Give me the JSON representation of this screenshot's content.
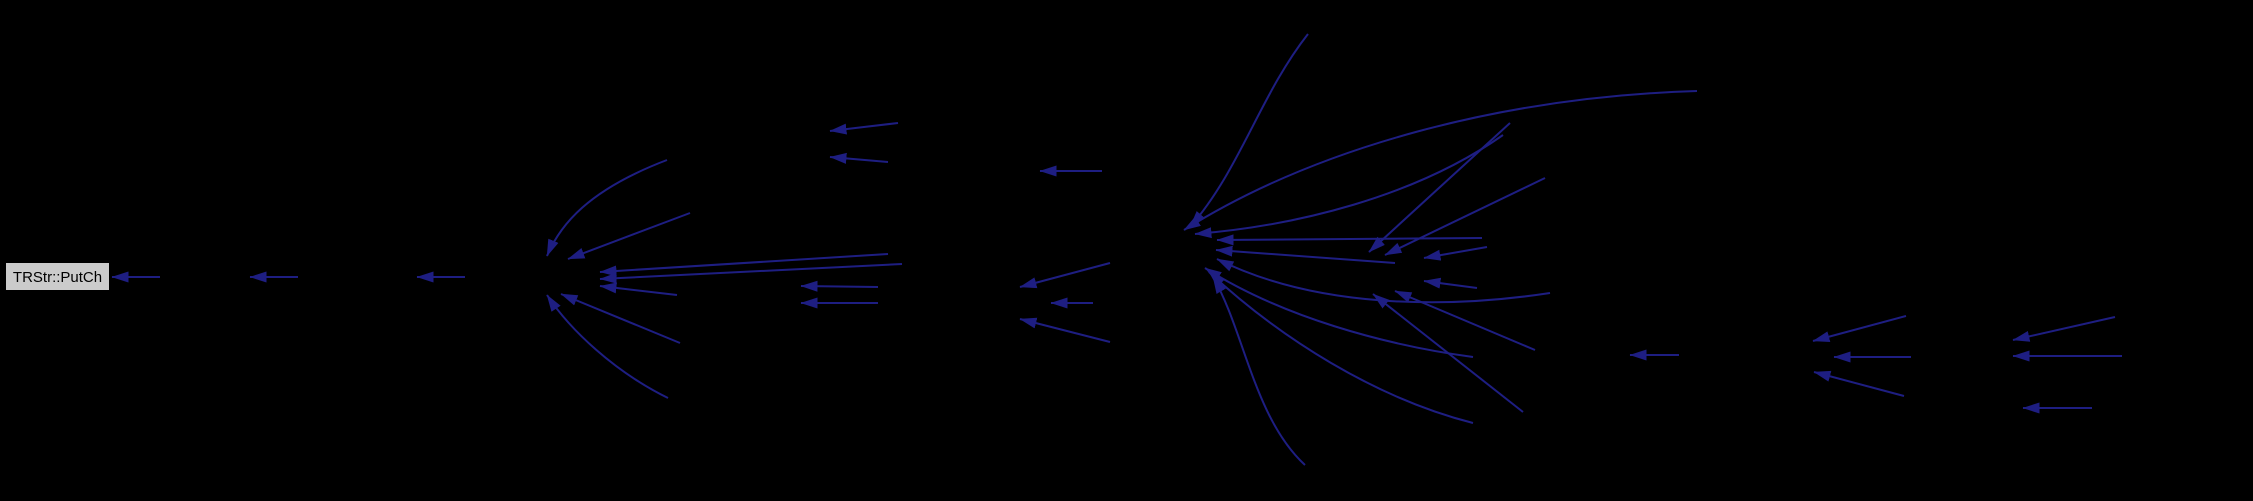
{
  "diagram": {
    "kind": "doxygen-caller-graph",
    "background_color": "#000000",
    "edge_color": "#1e1e82",
    "node": {
      "label": "TRStr::PutCh",
      "fill": "#cbcbcb",
      "border_color": "#000000",
      "text_color": "#000000"
    },
    "edges": [
      [
        160,
        277,
        112,
        277
      ],
      [
        298,
        277,
        250,
        277
      ],
      [
        465,
        277,
        417,
        277
      ],
      [
        667,
        160,
        588,
        190,
        560,
        225,
        547,
        256
      ],
      [
        690,
        213,
        568,
        259
      ],
      [
        888,
        254,
        600,
        272
      ],
      [
        902,
        264,
        600,
        279
      ],
      [
        677,
        295,
        600,
        286
      ],
      [
        680,
        343,
        561,
        294
      ],
      [
        668,
        398,
        615,
        372,
        570,
        330,
        547,
        295
      ],
      [
        878,
        287,
        801,
        286
      ],
      [
        878,
        303,
        801,
        303
      ],
      [
        898,
        123,
        830,
        131
      ],
      [
        888,
        162,
        830,
        157
      ],
      [
        1102,
        171,
        1040,
        171
      ],
      [
        1110,
        263,
        1020,
        287
      ],
      [
        1093,
        303,
        1051,
        303
      ],
      [
        1110,
        342,
        1020,
        319
      ],
      [
        1308,
        34,
        1260,
        95,
        1240,
        170,
        1190,
        227
      ],
      [
        1697,
        91,
        1500,
        97,
        1315,
        148,
        1184,
        230
      ],
      [
        1503,
        135,
        1415,
        197,
        1295,
        226,
        1195,
        234
      ],
      [
        1482,
        238,
        1217,
        240
      ],
      [
        1395,
        263,
        1216,
        250
      ],
      [
        1550,
        293,
        1445,
        309,
        1315,
        308,
        1217,
        259
      ],
      [
        1473,
        357,
        1385,
        345,
        1282,
        317,
        1205,
        268
      ],
      [
        1473,
        423,
        1375,
        398,
        1280,
        338,
        1209,
        272
      ],
      [
        1305,
        465,
        1254,
        418,
        1244,
        330,
        1213,
        277
      ],
      [
        1510,
        123,
        1369,
        252
      ],
      [
        1545,
        178,
        1385,
        255
      ],
      [
        1535,
        350,
        1395,
        291
      ],
      [
        1523,
        412,
        1373,
        294
      ],
      [
        1487,
        247,
        1424,
        258
      ],
      [
        1477,
        288,
        1424,
        281
      ],
      [
        1679,
        355,
        1630,
        355
      ],
      [
        1906,
        316,
        1813,
        341
      ],
      [
        1911,
        357,
        1834,
        357
      ],
      [
        1904,
        396,
        1814,
        372
      ],
      [
        2115,
        317,
        2013,
        340
      ],
      [
        2122,
        356,
        2013,
        356
      ],
      [
        2092,
        408,
        2023,
        408
      ]
    ]
  }
}
